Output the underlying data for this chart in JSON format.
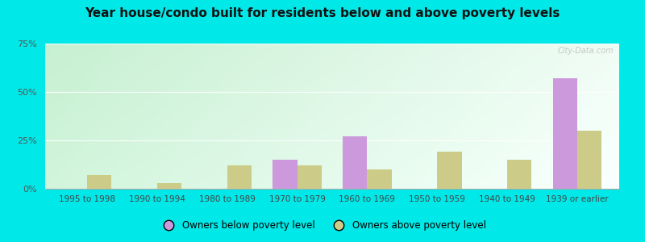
{
  "title": "Year house/condo built for residents below and above poverty levels",
  "categories": [
    "1995 to 1998",
    "1990 to 1994",
    "1980 to 1989",
    "1970 to 1979",
    "1960 to 1969",
    "1950 to 1959",
    "1940 to 1949",
    "1939 or earlier"
  ],
  "below_poverty": [
    0,
    0,
    0,
    15,
    27,
    0,
    0,
    57
  ],
  "above_poverty": [
    7,
    3,
    12,
    12,
    10,
    19,
    15,
    30
  ],
  "below_color": "#cc99dd",
  "above_color": "#cccc88",
  "ylim": [
    0,
    75
  ],
  "yticks": [
    0,
    25,
    50,
    75
  ],
  "ytick_labels": [
    "0%",
    "25%",
    "50%",
    "75%"
  ],
  "legend_below": "Owners below poverty level",
  "legend_above": "Owners above poverty level",
  "bg_outer": "#00e8e8",
  "watermark": "City-Data.com",
  "bar_width": 0.35,
  "gradient_top_left": "#b8eec8",
  "gradient_top_right": "#e8f8f0",
  "gradient_bottom": "#d8eee8"
}
